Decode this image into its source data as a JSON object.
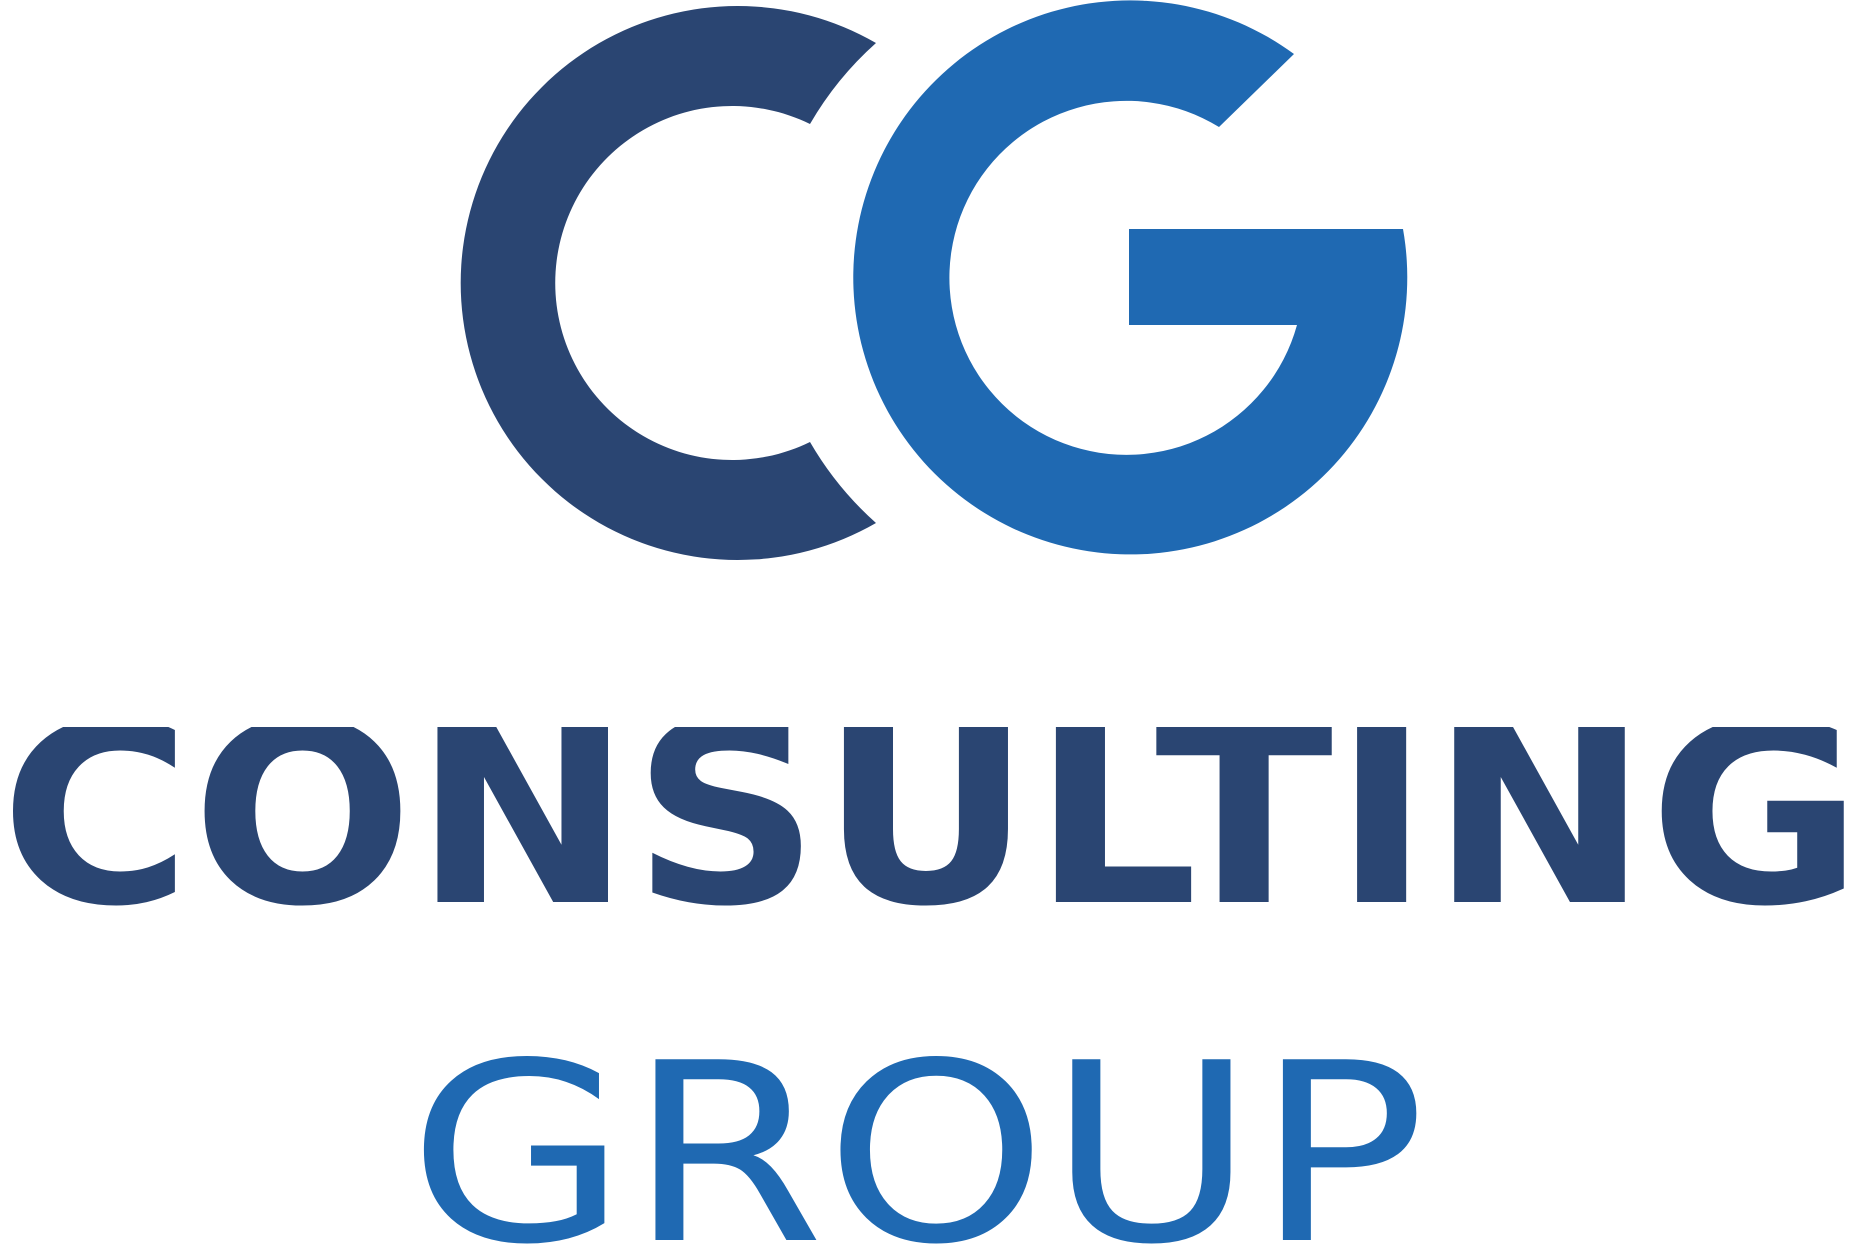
{
  "logo": {
    "monogram": {
      "letters": "CG",
      "c_color": "#2A4572",
      "g_color": "#1F69B2"
    },
    "line1": {
      "text": "CONSULTING",
      "color": "#2A4572"
    },
    "line2": {
      "text": "GROUP",
      "color": "#1F69B2"
    }
  }
}
